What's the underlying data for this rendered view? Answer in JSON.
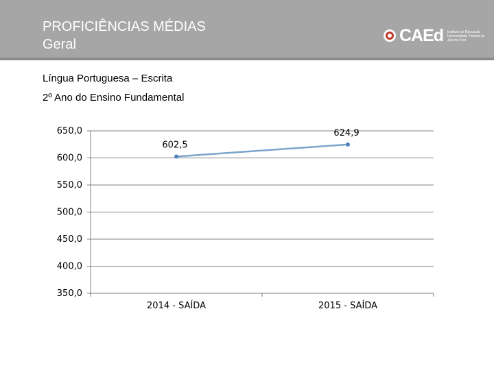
{
  "header": {
    "title_line1": "PROFICIÊNCIAS MÉDIAS",
    "title_line2": "Geral",
    "logo_text": "CAEd",
    "logo_subtext": "Instituto de Educação Universidade Federal de Juiz de Fora"
  },
  "subtitle": {
    "line1": "Língua Portuguesa – Escrita",
    "line2": "2º Ano do Ensino Fundamental"
  },
  "colors": {
    "header_bg": "#a6a6a6",
    "line": "#7ba3cc",
    "marker": "#4f81bd",
    "grid": "#808080"
  },
  "chart_data": {
    "type": "line",
    "categories": [
      "2014 - SAÍDA",
      "2015 - SAÍDA"
    ],
    "series": [
      {
        "values": [
          602.5,
          624.9
        ]
      }
    ],
    "data_labels": [
      "602,5",
      "624,9"
    ],
    "ylim": [
      350,
      650
    ],
    "yticks": [
      650,
      600,
      550,
      500,
      450,
      400,
      350
    ],
    "ytick_labels": [
      "650,0",
      "600,0",
      "550,0",
      "500,0",
      "450,0",
      "400,0",
      "350,0"
    ],
    "grid": true,
    "legend": "none",
    "title": "",
    "xlabel": "",
    "ylabel": ""
  }
}
